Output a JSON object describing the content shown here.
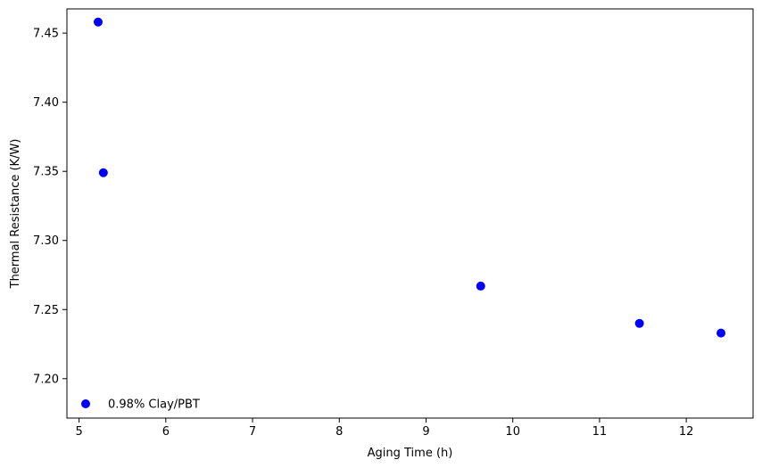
{
  "chart_data": {
    "type": "scatter",
    "title": "",
    "xlabel": "Aging Time (h)",
    "ylabel": "Thermal Resistance (K/W)",
    "xlim": [
      4.86,
      12.77
    ],
    "ylim": [
      7.1715,
      7.4675
    ],
    "xticks": [
      5,
      6,
      7,
      8,
      9,
      10,
      11,
      12
    ],
    "yticks": [
      7.2,
      7.25,
      7.3,
      7.35,
      7.4,
      7.45
    ],
    "xtick_labels": [
      "5",
      "6",
      "7",
      "8",
      "9",
      "10",
      "11",
      "12"
    ],
    "ytick_labels": [
      "7.20",
      "7.25",
      "7.30",
      "7.35",
      "7.40",
      "7.45"
    ],
    "grid": false,
    "legend_position": "lower-left",
    "series": [
      {
        "name": "0.98% Clay/PBT",
        "color": "#0000ff",
        "points": [
          {
            "x": 5.22,
            "y": 7.458
          },
          {
            "x": 5.28,
            "y": 7.349
          },
          {
            "x": 9.63,
            "y": 7.267
          },
          {
            "x": 11.46,
            "y": 7.24
          },
          {
            "x": 12.4,
            "y": 7.233
          }
        ]
      }
    ]
  }
}
